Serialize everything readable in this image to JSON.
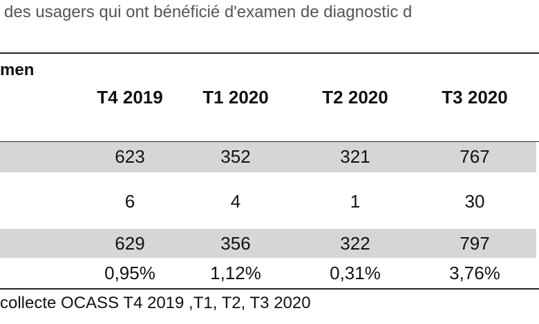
{
  "caption": "des usagers qui ont bénéficié d'examen de diagnostic d",
  "table": {
    "corner_label": "men",
    "columns": [
      "T4 2019",
      "T1 2020",
      "T2 2020",
      "T3 2020"
    ],
    "rows": [
      [
        "623",
        "352",
        "321",
        "767"
      ],
      [
        "6",
        "4",
        "1",
        "30"
      ],
      [
        "629",
        "356",
        "322",
        "797"
      ],
      [
        "0,95%",
        "1,12%",
        "0,31%",
        "3,76%"
      ]
    ]
  },
  "source": "collecte OCASS T4 2019 ,T1, T2, T3 2020"
}
